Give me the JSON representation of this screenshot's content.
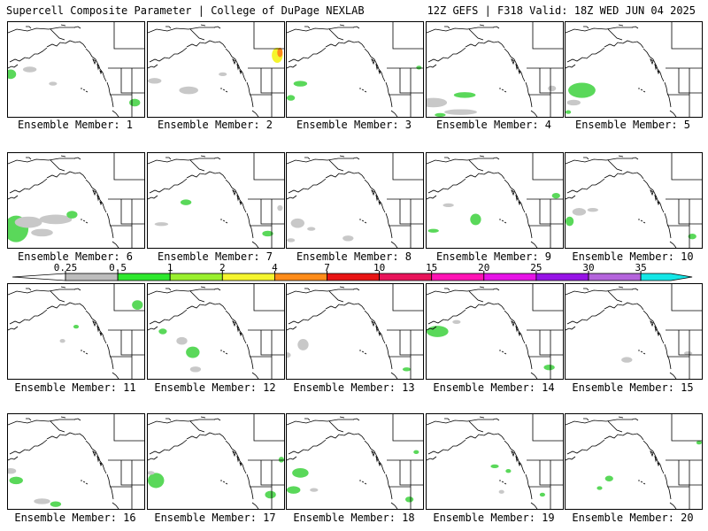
{
  "header": {
    "left": "Supercell Composite Parameter | College of DuPage NEXLAB",
    "right": "12Z GEFS | F318 Valid: 18Z WED JUN 04 2025"
  },
  "panels": [
    {
      "label": "Ensemble Member: 1",
      "blobs": [
        [
          "g",
          0.02,
          0.55,
          0.04,
          0.05
        ],
        [
          "gr",
          0.16,
          0.5,
          0.05,
          0.03
        ],
        [
          "gr",
          0.33,
          0.65,
          0.03,
          0.02
        ],
        [
          "g",
          0.93,
          0.85,
          0.04,
          0.04
        ]
      ]
    },
    {
      "label": "Ensemble Member: 2",
      "blobs": [
        [
          "gr",
          0.05,
          0.62,
          0.05,
          0.03
        ],
        [
          "gr",
          0.3,
          0.72,
          0.07,
          0.04
        ],
        [
          "gr",
          0.55,
          0.55,
          0.03,
          0.02
        ],
        [
          "y",
          0.95,
          0.35,
          0.04,
          0.08
        ],
        [
          "o",
          0.97,
          0.32,
          0.02,
          0.05
        ]
      ]
    },
    {
      "label": "Ensemble Member: 3",
      "blobs": [
        [
          "g",
          0.1,
          0.65,
          0.05,
          0.03
        ],
        [
          "g",
          0.03,
          0.8,
          0.03,
          0.03
        ],
        [
          "g",
          0.97,
          0.48,
          0.02,
          0.02
        ]
      ]
    },
    {
      "label": "Ensemble Member: 4",
      "blobs": [
        [
          "gr",
          0.05,
          0.85,
          0.1,
          0.05
        ],
        [
          "gr",
          0.25,
          0.95,
          0.12,
          0.03
        ],
        [
          "g",
          0.28,
          0.77,
          0.08,
          0.03
        ],
        [
          "g",
          0.1,
          0.98,
          0.04,
          0.02
        ],
        [
          "gr",
          0.92,
          0.7,
          0.03,
          0.03
        ]
      ]
    },
    {
      "label": "Ensemble Member: 5",
      "blobs": [
        [
          "g",
          0.12,
          0.72,
          0.1,
          0.08
        ],
        [
          "gr",
          0.06,
          0.85,
          0.05,
          0.03
        ],
        [
          "g",
          0.02,
          0.95,
          0.02,
          0.02
        ]
      ]
    },
    {
      "label": "Ensemble Member: 6",
      "blobs": [
        [
          "g",
          0.06,
          0.8,
          0.09,
          0.14
        ],
        [
          "gr",
          0.15,
          0.73,
          0.1,
          0.06
        ],
        [
          "gr",
          0.35,
          0.7,
          0.12,
          0.05
        ],
        [
          "g",
          0.47,
          0.65,
          0.04,
          0.04
        ],
        [
          "gr",
          0.25,
          0.84,
          0.08,
          0.04
        ]
      ]
    },
    {
      "label": "Ensemble Member: 7",
      "blobs": [
        [
          "g",
          0.28,
          0.52,
          0.04,
          0.03
        ],
        [
          "gr",
          0.1,
          0.75,
          0.05,
          0.02
        ],
        [
          "g",
          0.88,
          0.85,
          0.04,
          0.03
        ],
        [
          "gr",
          0.97,
          0.58,
          0.02,
          0.03
        ]
      ]
    },
    {
      "label": "Ensemble Member: 8",
      "blobs": [
        [
          "gr",
          0.08,
          0.74,
          0.05,
          0.05
        ],
        [
          "gr",
          0.18,
          0.8,
          0.03,
          0.02
        ],
        [
          "gr",
          0.45,
          0.9,
          0.04,
          0.03
        ],
        [
          "gr",
          0.03,
          0.92,
          0.03,
          0.02
        ]
      ]
    },
    {
      "label": "Ensemble Member: 9",
      "blobs": [
        [
          "g",
          0.36,
          0.7,
          0.04,
          0.06
        ],
        [
          "gr",
          0.16,
          0.55,
          0.04,
          0.02
        ],
        [
          "g",
          0.05,
          0.82,
          0.04,
          0.02
        ],
        [
          "g",
          0.95,
          0.45,
          0.03,
          0.03
        ]
      ]
    },
    {
      "label": "Ensemble Member: 10",
      "blobs": [
        [
          "g",
          0.03,
          0.72,
          0.03,
          0.05
        ],
        [
          "gr",
          0.1,
          0.62,
          0.05,
          0.04
        ],
        [
          "gr",
          0.2,
          0.6,
          0.04,
          0.02
        ],
        [
          "g",
          0.93,
          0.88,
          0.03,
          0.03
        ]
      ]
    },
    {
      "label": "Ensemble Member: 11",
      "blobs": [
        [
          "g",
          0.95,
          0.22,
          0.04,
          0.05
        ],
        [
          "g",
          0.5,
          0.45,
          0.02,
          0.02
        ],
        [
          "gr",
          0.4,
          0.6,
          0.02,
          0.02
        ]
      ]
    },
    {
      "label": "Ensemble Member: 12",
      "blobs": [
        [
          "g",
          0.33,
          0.72,
          0.05,
          0.06
        ],
        [
          "gr",
          0.25,
          0.6,
          0.04,
          0.04
        ],
        [
          "g",
          0.11,
          0.5,
          0.03,
          0.03
        ],
        [
          "gr",
          0.35,
          0.9,
          0.04,
          0.03
        ]
      ]
    },
    {
      "label": "Ensemble Member: 13",
      "blobs": [
        [
          "gr",
          0.12,
          0.64,
          0.04,
          0.06
        ],
        [
          "gr",
          0.0,
          0.75,
          0.03,
          0.03
        ],
        [
          "g",
          0.88,
          0.9,
          0.03,
          0.02
        ]
      ]
    },
    {
      "label": "Ensemble Member: 14",
      "blobs": [
        [
          "g",
          0.08,
          0.5,
          0.08,
          0.06
        ],
        [
          "gr",
          0.22,
          0.4,
          0.03,
          0.02
        ],
        [
          "g",
          0.9,
          0.88,
          0.04,
          0.03
        ]
      ]
    },
    {
      "label": "Ensemble Member: 15",
      "blobs": [
        [
          "gr",
          0.45,
          0.8,
          0.04,
          0.03
        ],
        [
          "gr",
          0.9,
          0.73,
          0.03,
          0.02
        ]
      ]
    },
    {
      "label": "Ensemble Member: 16",
      "blobs": [
        [
          "g",
          0.06,
          0.7,
          0.05,
          0.04
        ],
        [
          "gr",
          0.02,
          0.6,
          0.04,
          0.03
        ],
        [
          "gr",
          0.25,
          0.92,
          0.06,
          0.03
        ],
        [
          "g",
          0.35,
          0.95,
          0.04,
          0.03
        ]
      ]
    },
    {
      "label": "Ensemble Member: 17",
      "blobs": [
        [
          "g",
          0.06,
          0.7,
          0.06,
          0.08
        ],
        [
          "gr",
          0.02,
          0.62,
          0.03,
          0.02
        ],
        [
          "g",
          0.9,
          0.85,
          0.04,
          0.04
        ],
        [
          "g",
          0.98,
          0.48,
          0.02,
          0.03
        ]
      ]
    },
    {
      "label": "Ensemble Member: 18",
      "blobs": [
        [
          "g",
          0.1,
          0.62,
          0.06,
          0.05
        ],
        [
          "g",
          0.05,
          0.8,
          0.05,
          0.04
        ],
        [
          "gr",
          0.2,
          0.8,
          0.03,
          0.02
        ],
        [
          "g",
          0.95,
          0.4,
          0.02,
          0.02
        ],
        [
          "g",
          0.9,
          0.9,
          0.03,
          0.03
        ]
      ]
    },
    {
      "label": "Ensemble Member: 19",
      "blobs": [
        [
          "g",
          0.5,
          0.55,
          0.03,
          0.02
        ],
        [
          "g",
          0.6,
          0.6,
          0.02,
          0.02
        ],
        [
          "g",
          0.85,
          0.85,
          0.02,
          0.02
        ],
        [
          "gr",
          0.55,
          0.82,
          0.02,
          0.02
        ]
      ]
    },
    {
      "label": "Ensemble Member: 20",
      "blobs": [
        [
          "g",
          0.32,
          0.68,
          0.03,
          0.03
        ],
        [
          "g",
          0.25,
          0.78,
          0.02,
          0.02
        ],
        [
          "g",
          0.98,
          0.3,
          0.02,
          0.02
        ]
      ]
    }
  ],
  "colorbar": {
    "ticks": [
      "0.25",
      "0.5",
      "1",
      "2",
      "4",
      "7",
      "10",
      "15",
      "20",
      "25",
      "30",
      "35"
    ],
    "colors": [
      "#bdbdbd",
      "#2ee82e",
      "#9af02e",
      "#f5f52e",
      "#ff8c1a",
      "#e81414",
      "#e8145a",
      "#ff14b4",
      "#e614e6",
      "#9614e6",
      "#b464dc",
      "#14e6e6"
    ]
  },
  "shade_colors": {
    "g": "#5ad85a",
    "gr": "#c8c8c8",
    "y": "#f5f52e",
    "o": "#ff8c1a"
  },
  "map": {
    "land_border_color": "#000000",
    "ocean_color": "#ffffff"
  }
}
